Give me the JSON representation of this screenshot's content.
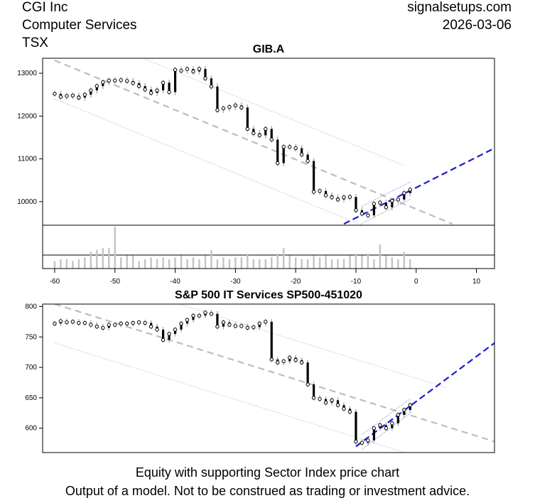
{
  "header": {
    "company": "CGI Inc",
    "sector": "Computer Services",
    "exchange": "TSX",
    "site": "signalsetups.com",
    "date": "2026-03-06"
  },
  "footer": {
    "line1": "Equity with supporting Sector Index price chart",
    "line2": "Output of a model. Not to be construed as trading or investment advice."
  },
  "chart_data": [
    {
      "type": "candlestick",
      "title": "GIB.A",
      "xlim": [
        -62,
        13
      ],
      "ylim": [
        9450,
        13350
      ],
      "x_ticks": [
        -60,
        -50,
        -40,
        -30,
        -20,
        -10,
        0,
        10
      ],
      "y_ticks": [
        10000,
        11000,
        12000,
        13000
      ],
      "price_series": [
        {
          "x": -60,
          "close": 12520
        },
        {
          "x": -59,
          "close": 12450
        },
        {
          "x": -58,
          "close": 12470
        },
        {
          "x": -57,
          "close": 12480
        },
        {
          "x": -56,
          "close": 12430
        },
        {
          "x": -55,
          "close": 12500
        },
        {
          "x": -54,
          "close": 12600
        },
        {
          "x": -53,
          "close": 12700
        },
        {
          "x": -52,
          "close": 12790
        },
        {
          "x": -51,
          "close": 12830
        },
        {
          "x": -50,
          "close": 12830
        },
        {
          "x": -49,
          "close": 12840
        },
        {
          "x": -48,
          "close": 12820
        },
        {
          "x": -47,
          "close": 12770
        },
        {
          "x": -46,
          "close": 12700
        },
        {
          "x": -45,
          "close": 12620
        },
        {
          "x": -44,
          "close": 12540
        },
        {
          "x": -43,
          "close": 12600
        },
        {
          "x": -42,
          "close": 12780
        },
        {
          "x": -41,
          "close": 12560
        },
        {
          "x": -40,
          "close": 13080
        },
        {
          "x": -39,
          "close": 13060
        },
        {
          "x": -38,
          "close": 13100
        },
        {
          "x": -37,
          "close": 13040
        },
        {
          "x": -36,
          "close": 13100
        },
        {
          "x": -35,
          "close": 12880
        },
        {
          "x": -34,
          "close": 12690
        },
        {
          "x": -33,
          "close": 12140
        },
        {
          "x": -32,
          "close": 12180
        },
        {
          "x": -31,
          "close": 12210
        },
        {
          "x": -30,
          "close": 12250
        },
        {
          "x": -29,
          "close": 12200
        },
        {
          "x": -28,
          "close": 11700
        },
        {
          "x": -27,
          "close": 11600
        },
        {
          "x": -26,
          "close": 11550
        },
        {
          "x": -25,
          "close": 11700
        },
        {
          "x": -24,
          "close": 11450
        },
        {
          "x": -23,
          "close": 10900
        },
        {
          "x": -22,
          "close": 11280
        },
        {
          "x": -21,
          "close": 11280
        },
        {
          "x": -20,
          "close": 11250
        },
        {
          "x": -19,
          "close": 11100
        },
        {
          "x": -18,
          "close": 10950
        },
        {
          "x": -17,
          "close": 10230
        },
        {
          "x": -16,
          "close": 10250
        },
        {
          "x": -15,
          "close": 10150
        },
        {
          "x": -14,
          "close": 10100
        },
        {
          "x": -13,
          "close": 10050
        },
        {
          "x": -12,
          "close": 10100
        },
        {
          "x": -11,
          "close": 10110
        },
        {
          "x": -10,
          "close": 9800
        },
        {
          "x": -9,
          "close": 9720
        },
        {
          "x": -8,
          "close": 9680
        },
        {
          "x": -7,
          "close": 9950
        },
        {
          "x": -6,
          "close": 9980
        },
        {
          "x": -5,
          "close": 9870
        },
        {
          "x": -4,
          "close": 10020
        },
        {
          "x": -3,
          "close": 10050
        },
        {
          "x": -2,
          "close": 10200
        },
        {
          "x": -1,
          "close": 10280
        }
      ],
      "volume": [
        8,
        10,
        10,
        8,
        10,
        12,
        18,
        20,
        22,
        22,
        45,
        12,
        14,
        14,
        8,
        10,
        12,
        10,
        12,
        10,
        12,
        14,
        10,
        12,
        10,
        14,
        20,
        10,
        12,
        10,
        12,
        12,
        16,
        10,
        10,
        10,
        12,
        16,
        22,
        14,
        12,
        10,
        10,
        14,
        12,
        14,
        10,
        10,
        10,
        14,
        16,
        14,
        16,
        10,
        26,
        14,
        12,
        10,
        18,
        10
      ],
      "long_trend": {
        "start": {
          "x": -60,
          "y": 13300
        },
        "end": {
          "x": 6,
          "y": 9480
        },
        "band_offset": 900
      },
      "short_trend": {
        "start": {
          "x": -12,
          "y": 9480
        },
        "end": {
          "x": 13,
          "y": 11250
        },
        "band_offset": 200
      }
    },
    {
      "type": "candlestick",
      "title": "S&P 500 IT Services SP500-451020",
      "xlim": [
        -62,
        13
      ],
      "ylim": [
        560,
        804
      ],
      "x_ticks": [],
      "y_ticks": [
        600,
        650,
        700,
        750,
        800
      ],
      "price_series": [
        {
          "x": -60,
          "close": 772
        },
        {
          "x": -59,
          "close": 776
        },
        {
          "x": -58,
          "close": 774
        },
        {
          "x": -57,
          "close": 775
        },
        {
          "x": -56,
          "close": 773
        },
        {
          "x": -55,
          "close": 773
        },
        {
          "x": -54,
          "close": 770
        },
        {
          "x": -53,
          "close": 767
        },
        {
          "x": -52,
          "close": 765
        },
        {
          "x": -51,
          "close": 770
        },
        {
          "x": -50,
          "close": 770
        },
        {
          "x": -49,
          "close": 772
        },
        {
          "x": -48,
          "close": 772
        },
        {
          "x": -47,
          "close": 773
        },
        {
          "x": -46,
          "close": 774
        },
        {
          "x": -45,
          "close": 773
        },
        {
          "x": -44,
          "close": 767
        },
        {
          "x": -43,
          "close": 762
        },
        {
          "x": -42,
          "close": 745
        },
        {
          "x": -41,
          "close": 755
        },
        {
          "x": -40,
          "close": 762
        },
        {
          "x": -39,
          "close": 772
        },
        {
          "x": -38,
          "close": 778
        },
        {
          "x": -37,
          "close": 785
        },
        {
          "x": -36,
          "close": 785
        },
        {
          "x": -35,
          "close": 790
        },
        {
          "x": -34,
          "close": 788
        },
        {
          "x": -33,
          "close": 767
        },
        {
          "x": -32,
          "close": 774
        },
        {
          "x": -31,
          "close": 770
        },
        {
          "x": -30,
          "close": 768
        },
        {
          "x": -29,
          "close": 768
        },
        {
          "x": -28,
          "close": 765
        },
        {
          "x": -27,
          "close": 766
        },
        {
          "x": -26,
          "close": 772
        },
        {
          "x": -25,
          "close": 775
        },
        {
          "x": -24,
          "close": 713
        },
        {
          "x": -23,
          "close": 708
        },
        {
          "x": -22,
          "close": 710
        },
        {
          "x": -21,
          "close": 716
        },
        {
          "x": -20,
          "close": 712
        },
        {
          "x": -19,
          "close": 708
        },
        {
          "x": -18,
          "close": 672
        },
        {
          "x": -17,
          "close": 650
        },
        {
          "x": -16,
          "close": 648
        },
        {
          "x": -15,
          "close": 642
        },
        {
          "x": -14,
          "close": 646
        },
        {
          "x": -13,
          "close": 638
        },
        {
          "x": -12,
          "close": 632
        },
        {
          "x": -11,
          "close": 627
        },
        {
          "x": -10,
          "close": 578
        },
        {
          "x": -9,
          "close": 576
        },
        {
          "x": -8,
          "close": 580
        },
        {
          "x": -7,
          "close": 600
        },
        {
          "x": -6,
          "close": 605
        },
        {
          "x": -5,
          "close": 600
        },
        {
          "x": -4,
          "close": 608
        },
        {
          "x": -3,
          "close": 622
        },
        {
          "x": -2,
          "close": 630
        },
        {
          "x": -1,
          "close": 638
        }
      ],
      "long_trend": {
        "start": {
          "x": -60,
          "y": 804
        },
        "end": {
          "x": 13,
          "y": 578
        },
        "band_offset": 64
      },
      "short_trend": {
        "start": {
          "x": -10,
          "y": 570
        },
        "end": {
          "x": 13,
          "y": 740
        },
        "band_offset": 12
      }
    }
  ]
}
